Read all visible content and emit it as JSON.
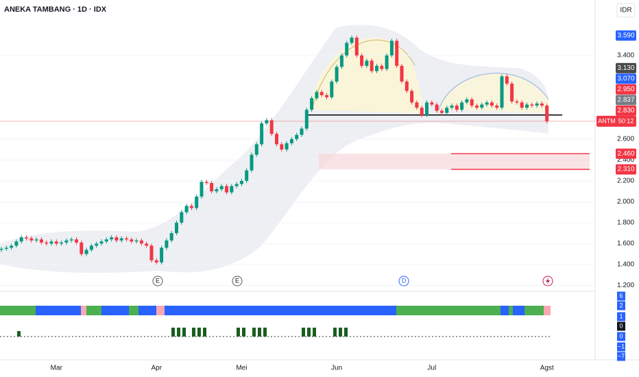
{
  "header": {
    "title": "ANEKA TAMBANG · 1D · IDX",
    "currency": "IDR"
  },
  "chart_data": {
    "type": "candlestick",
    "categories": [
      null,
      null,
      null,
      null,
      null,
      null,
      null,
      null,
      null,
      null,
      null,
      "Mar",
      null,
      null,
      null,
      null,
      null,
      null,
      null,
      null,
      null,
      null,
      null,
      null,
      null,
      null,
      null,
      null,
      null,
      null,
      null,
      "Apr",
      null,
      null,
      null,
      null,
      null,
      null,
      null,
      null,
      null,
      null,
      null,
      null,
      null,
      null,
      null,
      null,
      "Mei",
      null,
      null,
      null,
      null,
      null,
      null,
      null,
      null,
      null,
      null,
      null,
      null,
      null,
      null,
      null,
      null,
      null,
      null,
      "Jun",
      null,
      null,
      null,
      null,
      null,
      null,
      null,
      null,
      null,
      null,
      null,
      null,
      null,
      null,
      null,
      null,
      null,
      null,
      "Jul",
      null,
      null,
      null,
      null,
      null,
      null,
      null,
      null,
      null,
      null,
      null,
      null,
      null,
      null,
      null,
      null,
      null,
      null,
      null,
      null,
      null,
      null,
      "Agst"
    ],
    "open": [
      1540,
      1550,
      1560,
      1580,
      1620,
      1660,
      1650,
      1630,
      1640,
      1610,
      1600,
      1620,
      1600,
      1610,
      1630,
      1640,
      1610,
      1500,
      1540,
      1580,
      1600,
      1620,
      1640,
      1660,
      1630,
      1650,
      1640,
      1620,
      1630,
      1600,
      1580,
      1440,
      1420,
      1560,
      1630,
      1700,
      1800,
      1900,
      1960,
      1940,
      2050,
      2190,
      2180,
      2100,
      2120,
      2150,
      2090,
      2150,
      2170,
      2200,
      2300,
      2450,
      2550,
      2750,
      2780,
      2650,
      2550,
      2500,
      2560,
      2600,
      2640,
      2700,
      2880,
      2990,
      3050,
      3020,
      3000,
      3150,
      3290,
      3400,
      3520,
      3570,
      3400,
      3300,
      3350,
      3250,
      3300,
      3270,
      3400,
      3540,
      3300,
      3150,
      3060,
      2950,
      2900,
      2830,
      2950,
      2930,
      2870,
      2850,
      2900,
      2920,
      2880,
      2950,
      2980,
      2920,
      2900,
      2930,
      2950,
      2920,
      2900,
      3200,
      3130,
      2960,
      2950,
      2900,
      2930,
      2920,
      2940,
      2920
    ],
    "high": [
      1570,
      1580,
      1600,
      1640,
      1680,
      1680,
      1670,
      1660,
      1660,
      1630,
      1640,
      1640,
      1630,
      1650,
      1660,
      1660,
      1630,
      1560,
      1600,
      1620,
      1640,
      1660,
      1680,
      1680,
      1670,
      1670,
      1660,
      1650,
      1650,
      1620,
      1600,
      1460,
      1580,
      1650,
      1720,
      1820,
      1920,
      1980,
      1980,
      2070,
      2210,
      2210,
      2200,
      2140,
      2170,
      2170,
      2170,
      2190,
      2220,
      2320,
      2470,
      2570,
      2770,
      2800,
      2800,
      2670,
      2570,
      2580,
      2620,
      2660,
      2720,
      2900,
      3010,
      3070,
      3070,
      3040,
      3170,
      3310,
      3420,
      3540,
      3590,
      3590,
      3420,
      3370,
      3370,
      3320,
      3320,
      3420,
      3560,
      3560,
      3320,
      3170,
      3080,
      2970,
      2920,
      2970,
      2970,
      2950,
      2890,
      2920,
      2940,
      2940,
      2970,
      3000,
      3000,
      2940,
      2950,
      2970,
      2970,
      2940,
      3220,
      3220,
      3150,
      2980,
      2970,
      2950,
      2950,
      2960,
      2960,
      2940
    ],
    "low": [
      1520,
      1530,
      1540,
      1560,
      1600,
      1630,
      1610,
      1610,
      1590,
      1580,
      1580,
      1580,
      1580,
      1590,
      1610,
      1590,
      1480,
      1480,
      1520,
      1560,
      1580,
      1600,
      1620,
      1610,
      1610,
      1620,
      1600,
      1600,
      1580,
      1560,
      1420,
      1400,
      1400,
      1540,
      1610,
      1680,
      1780,
      1880,
      1920,
      1920,
      2030,
      2160,
      2080,
      2080,
      2100,
      2070,
      2070,
      2130,
      2150,
      2180,
      2280,
      2430,
      2530,
      2730,
      2630,
      2530,
      2480,
      2480,
      2540,
      2580,
      2620,
      2680,
      2860,
      2970,
      3000,
      2980,
      2980,
      3130,
      3270,
      3380,
      3500,
      3380,
      3280,
      3280,
      3230,
      3230,
      3250,
      3250,
      3380,
      3280,
      3130,
      3040,
      2930,
      2880,
      2810,
      2810,
      2910,
      2850,
      2830,
      2830,
      2880,
      2860,
      2860,
      2930,
      2900,
      2880,
      2880,
      2910,
      2900,
      2880,
      2880,
      3110,
      2940,
      2930,
      2880,
      2880,
      2900,
      2900,
      2900,
      2750
    ],
    "close": [
      1550,
      1560,
      1580,
      1620,
      1660,
      1650,
      1630,
      1640,
      1610,
      1600,
      1620,
      1600,
      1610,
      1630,
      1640,
      1610,
      1500,
      1540,
      1580,
      1600,
      1620,
      1640,
      1660,
      1630,
      1650,
      1640,
      1620,
      1630,
      1600,
      1580,
      1440,
      1420,
      1560,
      1630,
      1700,
      1800,
      1900,
      1960,
      1940,
      2050,
      2190,
      2180,
      2100,
      2120,
      2150,
      2090,
      2150,
      2170,
      2200,
      2300,
      2450,
      2550,
      2750,
      2780,
      2650,
      2550,
      2500,
      2560,
      2600,
      2640,
      2700,
      2880,
      2990,
      3050,
      3020,
      3000,
      3150,
      3290,
      3400,
      3520,
      3570,
      3400,
      3300,
      3350,
      3250,
      3300,
      3270,
      3400,
      3540,
      3300,
      3150,
      3060,
      2950,
      2900,
      2830,
      2950,
      2930,
      2870,
      2850,
      2900,
      2920,
      2880,
      2950,
      2980,
      2920,
      2900,
      2930,
      2950,
      2920,
      2900,
      3200,
      3130,
      2960,
      2950,
      2900,
      2930,
      2920,
      2940,
      2920,
      2770
    ],
    "up_color": "#089981",
    "down_color": "#f23645",
    "ylim": [
      1150,
      3930
    ],
    "yticks": [
      {
        "value": 1200,
        "label": "1.200"
      },
      {
        "value": 1400,
        "label": "1.400"
      },
      {
        "value": 1600,
        "label": "1.600"
      },
      {
        "value": 1800,
        "label": "1.800"
      },
      {
        "value": 2000,
        "label": "2.000"
      },
      {
        "value": 2200,
        "label": "2.200"
      },
      {
        "value": 2400,
        "label": "2.400"
      },
      {
        "value": 2600,
        "label": "2.600"
      },
      {
        "value": 3400,
        "label": "3.400"
      }
    ],
    "grid": true,
    "price_labels": [
      {
        "value": 3590,
        "label": "3.590",
        "color": "#2962ff"
      },
      {
        "value": 3130,
        "label": "3.130",
        "color": "#4a4a4a"
      },
      {
        "value": 3070,
        "label": "3.070",
        "color": "#2962ff"
      },
      {
        "value": 2950,
        "label": "2.950",
        "color": "#f23645"
      },
      {
        "value": 2837,
        "label": "2.837",
        "color": "#787b86"
      },
      {
        "value": 2830,
        "label": "2.830",
        "color": "#f23645"
      },
      {
        "value": 2460,
        "label": "2.460",
        "color": "#f23645"
      },
      {
        "value": 2310,
        "label": "2.310",
        "color": "#f23645"
      }
    ],
    "last_price": {
      "symbol": "ANTM",
      "countdown": "50:12",
      "color": "#f23645"
    },
    "levels": [
      {
        "value": 2830,
        "color": "#000000"
      },
      {
        "value": 2460,
        "color": "#f23645"
      },
      {
        "value": 2310,
        "color": "#f23645"
      }
    ],
    "events": [
      "E",
      "E",
      "D"
    ],
    "lower_pane": {
      "labels": [
        {
          "text": "6",
          "color": "#2962ff"
        },
        {
          "text": "2",
          "color": "#2962ff"
        },
        {
          "text": "1",
          "color": "#2962ff"
        },
        {
          "text": "0",
          "color": "#131722"
        },
        {
          "text": "0",
          "color": "#2962ff"
        },
        {
          "text": "−1",
          "color": "#2962ff"
        },
        {
          "text": "−7",
          "color": "#2962ff"
        }
      ]
    }
  }
}
